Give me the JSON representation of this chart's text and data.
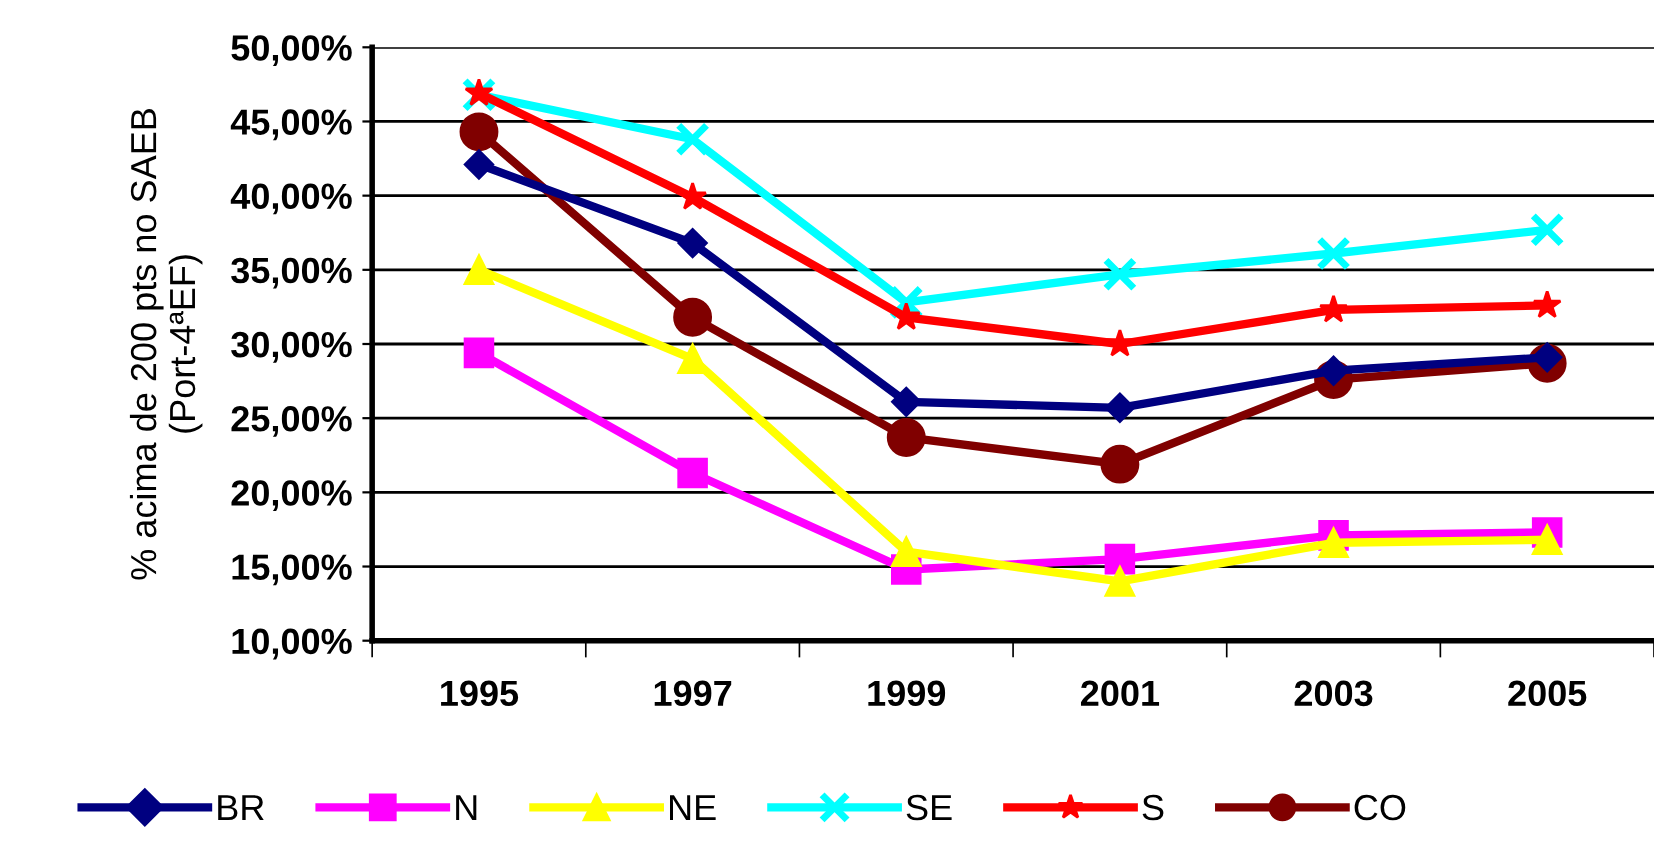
{
  "chart_data": {
    "type": "line",
    "ylabel": "% acima de 200 pts no SAEB\n(Port-4ªEF)",
    "categories": [
      "1995",
      "1997",
      "1999",
      "2001",
      "2003",
      "2005"
    ],
    "series": [
      {
        "name": "BR",
        "color": "#000080",
        "marker": "diamond",
        "values": [
          42.1,
          36.8,
          26.1,
          25.7,
          28.2,
          29.1
        ]
      },
      {
        "name": "N",
        "color": "#ff00ff",
        "marker": "square",
        "values": [
          29.4,
          21.3,
          14.8,
          15.5,
          17.1,
          17.3
        ]
      },
      {
        "name": "NE",
        "color": "#ffff00",
        "marker": "triangle",
        "values": [
          35.0,
          29.0,
          16.0,
          14.0,
          16.6,
          16.8
        ]
      },
      {
        "name": "SE",
        "color": "#00ffff",
        "marker": "cross",
        "values": [
          46.8,
          43.8,
          32.8,
          34.7,
          36.1,
          37.7
        ]
      },
      {
        "name": "S",
        "color": "#ff0000",
        "marker": "star",
        "values": [
          46.9,
          39.9,
          31.8,
          30.0,
          32.3,
          32.6
        ]
      },
      {
        "name": "CO",
        "color": "#800000",
        "marker": "circle",
        "values": [
          44.3,
          31.8,
          23.7,
          21.9,
          27.6,
          28.7
        ]
      }
    ],
    "ylim": [
      10,
      50
    ],
    "yticks": [
      {
        "value": 10,
        "label": "10,00%"
      },
      {
        "value": 15,
        "label": "15,00%"
      },
      {
        "value": 20,
        "label": "20,00%"
      },
      {
        "value": 25,
        "label": "25,00%"
      },
      {
        "value": 30,
        "label": "30,00%"
      },
      {
        "value": 35,
        "label": "35,00%"
      },
      {
        "value": 40,
        "label": "40,00%"
      },
      {
        "value": 45,
        "label": "45,00%"
      },
      {
        "value": 50,
        "label": "50,00%"
      }
    ],
    "grid": "y",
    "legend": "bottom",
    "line_style": "solid"
  }
}
